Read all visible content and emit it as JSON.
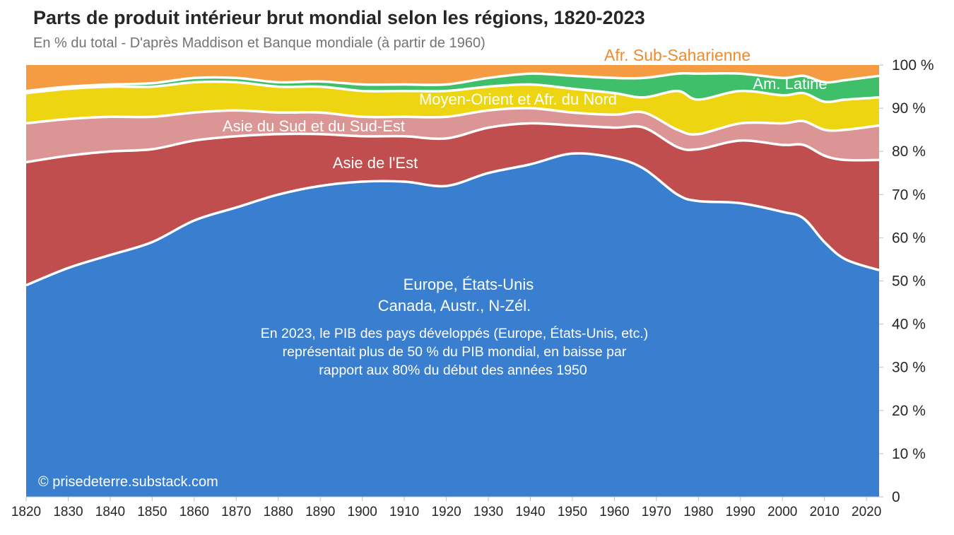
{
  "header": {
    "title": "Parts de produit intérieur brut mondial selon les régions, 1820-2023",
    "subtitle": "En % du total - D'après Maddison et Banque mondiale (à partir de 1960)"
  },
  "chart_data": {
    "type": "area",
    "stacked": true,
    "title": "Parts de produit intérieur brut mondial selon les régions, 1820-2023",
    "subtitle": "En % du total - D'après Maddison et Banque mondiale (à partir de 1960)",
    "ylim": [
      0,
      100
    ],
    "xlim": [
      1820,
      2023
    ],
    "x_ticks": [
      "1820",
      "1830",
      "1840",
      "1850",
      "1860",
      "1870",
      "1880",
      "1890",
      "1900",
      "1910",
      "1920",
      "1930",
      "1940",
      "1950",
      "1960",
      "1970",
      "1980",
      "1990",
      "2000",
      "2010",
      "2020"
    ],
    "y_ticks": [
      "0",
      "10 %",
      "20 %",
      "30 %",
      "40 %",
      "50 %",
      "60 %",
      "70 %",
      "80 %",
      "90 %",
      "100 %"
    ],
    "x": [
      1820,
      1830,
      1840,
      1850,
      1860,
      1870,
      1880,
      1890,
      1900,
      1910,
      1920,
      1930,
      1940,
      1950,
      1960,
      1967,
      1975,
      1980,
      1990,
      2000,
      2005,
      2010,
      2015,
      2023
    ],
    "series": [
      {
        "name": "Europe, États-Unis, Canada, Austr., N-Zél.",
        "color": "#3a7fcf",
        "values": [
          49,
          53,
          56,
          59,
          64,
          67,
          70,
          72,
          73,
          73,
          72,
          75,
          77,
          79.5,
          78.5,
          76,
          70,
          68.5,
          68,
          66,
          64.5,
          59,
          55,
          52.5
        ]
      },
      {
        "name": "Asie de l'Est",
        "color": "#c04e4e",
        "values": [
          28.5,
          26,
          24,
          21.5,
          18.5,
          16.5,
          14,
          12,
          10.5,
          10.5,
          11,
          10.5,
          9.5,
          6.5,
          7,
          9.5,
          11,
          12,
          14.5,
          15.5,
          17,
          20,
          23,
          25.5
        ]
      },
      {
        "name": "Asie du Sud et du Sud-Est",
        "color": "#dc9595",
        "values": [
          9,
          8.5,
          8,
          7.5,
          6.5,
          6,
          5,
          5,
          4.5,
          4.5,
          5,
          4,
          3.5,
          3,
          3,
          3.5,
          4,
          3.5,
          4,
          5,
          5.5,
          6,
          7,
          8
        ]
      },
      {
        "name": "Moyen-Orient et Afr. du Nord",
        "color": "#eed512",
        "values": [
          7,
          7,
          7,
          7,
          7,
          6.5,
          6,
          6,
          6,
          6,
          6,
          5.5,
          5.5,
          5.5,
          5,
          3.5,
          9,
          8,
          7.5,
          6.5,
          6.5,
          6.5,
          7,
          6.5
        ]
      },
      {
        "name": "Am. Latine",
        "color": "#40bf6a",
        "values": [
          0.5,
          0.5,
          0.5,
          0.8,
          1,
          1,
          1,
          1.2,
          1.5,
          1.5,
          1.5,
          2,
          2.5,
          3,
          3.5,
          4.5,
          4,
          6,
          4,
          4,
          4,
          4.5,
          4.5,
          5
        ]
      },
      {
        "name": "Afr. Sub-Saharienne",
        "color": "#f59c43",
        "values": [
          6,
          5,
          4.5,
          4.2,
          3,
          3,
          4,
          3.8,
          4.5,
          4.5,
          4.5,
          3,
          2,
          2.5,
          3,
          3,
          2,
          2,
          2,
          3,
          2.5,
          4,
          3.5,
          2.5
        ]
      }
    ],
    "annotations": {
      "europe_line1": "Europe, États-Unis",
      "europe_line2": "Canada, Austr., N-Zél.",
      "note_line1": "En 2023, le PIB des pays développés (Europe, États-Unis, etc.)",
      "note_line2": "représentait plus de 50 % du PIB mondial, en baisse par",
      "note_line3": "rapport aux 80% du début des années 1950",
      "source": "© prisedeterre.substack.com"
    }
  }
}
